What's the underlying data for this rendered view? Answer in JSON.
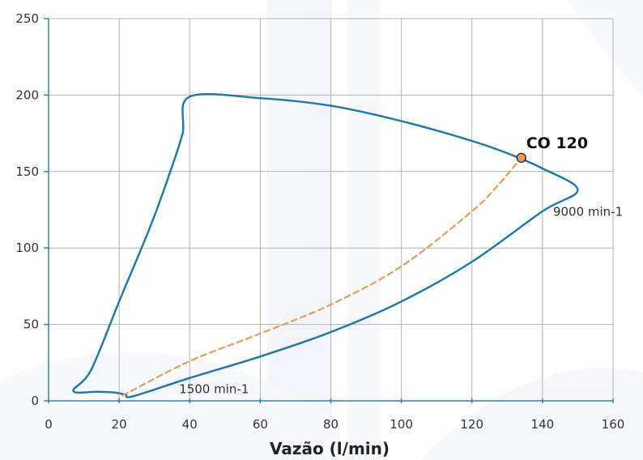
{
  "chart_data": {
    "type": "line",
    "xlabel": "Vazão (l/min)",
    "ylabel": "",
    "xlim": [
      0,
      160
    ],
    "ylim": [
      0,
      250
    ],
    "x_ticks": [
      0,
      20,
      40,
      60,
      80,
      100,
      120,
      140,
      160
    ],
    "y_ticks": [
      0,
      50,
      100,
      150,
      200,
      250
    ],
    "grid": true,
    "series": [
      {
        "style": "solid",
        "color": "#1a78b4",
        "points": [
          [
            22,
            4
          ],
          [
            18.5,
            5.5
          ],
          [
            14,
            6
          ],
          [
            7,
            6.5
          ],
          [
            12,
            20
          ],
          [
            20,
            65
          ],
          [
            29,
            115
          ],
          [
            34.5,
            150
          ],
          [
            38,
            175
          ],
          [
            40,
            199
          ],
          [
            60,
            198
          ],
          [
            80,
            193
          ],
          [
            100,
            183
          ],
          [
            120,
            170
          ],
          [
            130,
            162
          ],
          [
            140,
            152
          ],
          [
            150,
            138
          ],
          [
            140,
            124
          ],
          [
            120,
            91
          ],
          [
            100,
            65
          ],
          [
            80,
            45
          ],
          [
            60,
            29
          ],
          [
            40,
            15
          ],
          [
            24,
            3
          ],
          [
            22,
            4
          ]
        ]
      },
      {
        "style": "dashed",
        "color": "#ee9a55",
        "points": [
          [
            21,
            3.5
          ],
          [
            40,
            26
          ],
          [
            60,
            44
          ],
          [
            80,
            63
          ],
          [
            100,
            88
          ],
          [
            120,
            124
          ],
          [
            127,
            140
          ],
          [
            134,
            159
          ]
        ]
      }
    ],
    "marker": {
      "x": 134,
      "y": 159,
      "label": "CO 120",
      "color": "#ee9a55"
    },
    "annotations": [
      {
        "text": "1500 min-1",
        "x": 37,
        "y": 4
      },
      {
        "text": "9000 min-1",
        "x": 143,
        "y": 120
      }
    ]
  }
}
